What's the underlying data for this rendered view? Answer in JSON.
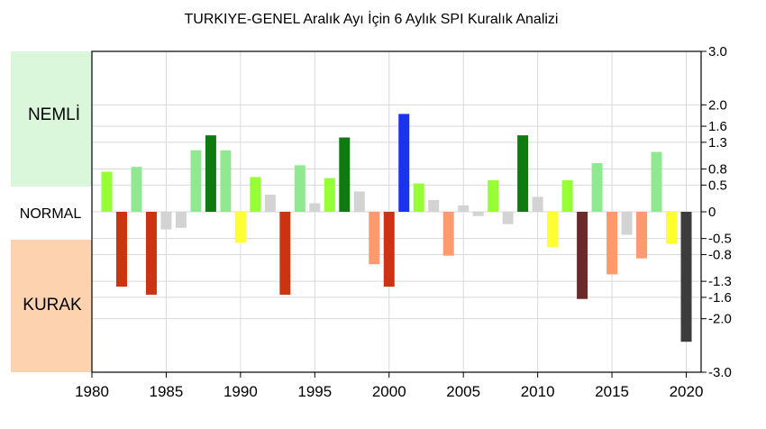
{
  "chart_data": {
    "type": "bar",
    "title": "TURKIYE-GENEL Aralık Ayı İçin 6 Aylık SPI Kuralık Analizi",
    "xlabel": "",
    "ylabel": "",
    "ylim": [
      -3.0,
      3.0
    ],
    "x_range": [
      1980,
      2021
    ],
    "x_ticks": [
      "1980",
      "1985",
      "1990",
      "1995",
      "2000",
      "2005",
      "2010",
      "2015",
      "2020"
    ],
    "y_ticks": [
      {
        "value": 3.0,
        "label": "3.0"
      },
      {
        "value": 2.0,
        "label": "2.0"
      },
      {
        "value": 1.6,
        "label": "1.6"
      },
      {
        "value": 1.3,
        "label": "1.3"
      },
      {
        "value": 0.8,
        "label": "0.8"
      },
      {
        "value": 0.5,
        "label": "0.5"
      },
      {
        "value": 0,
        "label": "0"
      },
      {
        "value": -0.5,
        "label": "-0.5"
      },
      {
        "value": -0.8,
        "label": "-0.8"
      },
      {
        "value": -1.3,
        "label": "-1.3"
      },
      {
        "value": -1.6,
        "label": "-1.6"
      },
      {
        "value": -2.0,
        "label": "-2.0"
      },
      {
        "value": -3.0,
        "label": "-3.0"
      }
    ],
    "zones": {
      "wet_label": "NEMLİ",
      "normal_label": "NORMAL",
      "dry_label": "KURAK"
    },
    "grid": true,
    "legend": "none",
    "series": [
      {
        "years": [
          1981,
          1982,
          1983,
          1984,
          1985,
          1986,
          1987,
          1988,
          1989,
          1990,
          1991,
          1992,
          1993,
          1994,
          1995,
          1996,
          1997,
          1998,
          1999,
          2000,
          2001,
          2002,
          2003,
          2004,
          2005,
          2006,
          2007,
          2008,
          2009,
          2010,
          2011,
          2012,
          2013,
          2014,
          2015,
          2016,
          2017,
          2018,
          2019,
          2020
        ],
        "values": [
          0.75,
          -1.4,
          0.84,
          -1.55,
          -0.33,
          -0.3,
          1.15,
          1.43,
          1.15,
          -0.58,
          0.65,
          0.32,
          -1.55,
          0.87,
          0.16,
          0.63,
          1.39,
          0.38,
          -0.98,
          -1.4,
          1.83,
          0.53,
          0.22,
          -0.82,
          0.12,
          -0.08,
          0.59,
          -0.23,
          1.43,
          0.28,
          -0.66,
          0.59,
          -1.63,
          0.91,
          -1.17,
          -0.43,
          -0.87,
          1.12,
          -0.6,
          -2.43
        ],
        "colors": [
          "#96ff35",
          "#cc3311",
          "#90e890",
          "#cc3311",
          "#d3d3d3",
          "#d3d3d3",
          "#90e890",
          "#0f7a0f",
          "#90e890",
          "#ffff33",
          "#96ff35",
          "#d3d3d3",
          "#cc3311",
          "#90e890",
          "#d3d3d3",
          "#96ff35",
          "#0f7a0f",
          "#d3d3d3",
          "#ff9a70",
          "#cc3311",
          "#1a34ee",
          "#96ff35",
          "#d3d3d3",
          "#ff9a70",
          "#d3d3d3",
          "#d3d3d3",
          "#96ff35",
          "#d3d3d3",
          "#0f7a0f",
          "#d3d3d3",
          "#ffff33",
          "#96ff35",
          "#6b2a2a",
          "#90e890",
          "#ff9a70",
          "#d3d3d3",
          "#ff9a70",
          "#90e890",
          "#ffff33",
          "#3c3c3c"
        ]
      }
    ],
    "zone_colors": {
      "wet": "#dbf7db",
      "dry": "#fdd2ae"
    }
  }
}
